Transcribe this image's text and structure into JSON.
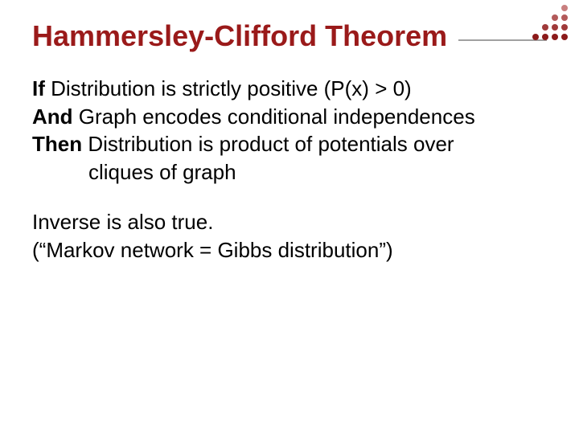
{
  "colors": {
    "accent": "#9a1a1a",
    "rule": "#a0a0a0",
    "text": "#000000",
    "background": "#ffffff",
    "dot_rows": [
      "#c97f7f",
      "#b35a5a",
      "#a03a3a",
      "#8c1a1a"
    ]
  },
  "title": "Hammersley-Clifford Theorem",
  "lines": {
    "l1_bold": "If",
    "l1_rest": " Distribution is strictly positive (P(x) > 0)",
    "l2_bold": "And",
    "l2_rest": " Graph encodes conditional independences",
    "l3_bold": "Then",
    "l3_rest": " Distribution is product of potentials over",
    "l4": "cliques of graph",
    "l5": "Inverse is also true.",
    "l6": "(“Markov network = Gibbs distribution”)"
  },
  "typography": {
    "title_fontsize": 36,
    "body_fontsize": 26,
    "font_family": "Arial"
  }
}
